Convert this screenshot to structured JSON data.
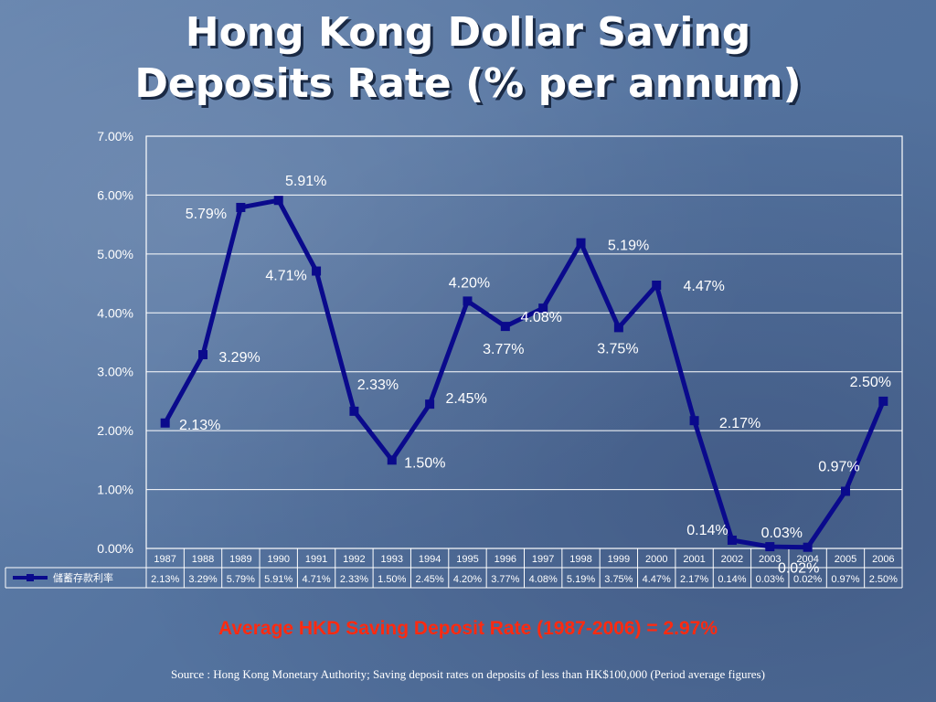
{
  "title": {
    "line1": "Hong Kong Dollar Saving",
    "line2": "Deposits Rate (% per annum)"
  },
  "average_note": "Average HKD Saving Deposit Rate (1987-2006) = 2.97%",
  "source_note": "Source : Hong Kong Monetary Authority; Saving deposit rates on deposits of less than HK$100,000 (Period average figures)",
  "chart_data": {
    "type": "line",
    "y_ticks": [
      "7.00%",
      "6.00%",
      "5.00%",
      "4.00%",
      "3.00%",
      "2.00%",
      "1.00%",
      "0.00%"
    ],
    "ylim": [
      0,
      7
    ],
    "grid": true,
    "categories": [
      "1987",
      "1988",
      "1989",
      "1990",
      "1991",
      "1992",
      "1993",
      "1994",
      "1995",
      "1996",
      "1997",
      "1998",
      "1999",
      "2000",
      "2001",
      "2002",
      "2003",
      "2004",
      "2005",
      "2006"
    ],
    "series": [
      {
        "name": "儲蓄存款利率",
        "values": [
          2.13,
          3.29,
          5.79,
          5.91,
          4.71,
          2.33,
          1.5,
          2.45,
          4.2,
          3.77,
          4.08,
          5.19,
          3.75,
          4.47,
          2.17,
          0.14,
          0.03,
          0.02,
          0.97,
          2.5
        ],
        "labels": [
          "2.13%",
          "3.29%",
          "5.79%",
          "5.91%",
          "4.71%",
          "2.33%",
          "1.50%",
          "2.45%",
          "4.20%",
          "3.77%",
          "4.08%",
          "5.19%",
          "3.75%",
          "4.47%",
          "2.17%",
          "0.14%",
          "0.03%",
          "0.02%",
          "0.97%",
          "2.50%"
        ]
      }
    ],
    "colors": {
      "line": "#0a0a8c",
      "plot_border": "#ffffff",
      "text": "#ffffff"
    },
    "legend": "data-table"
  }
}
